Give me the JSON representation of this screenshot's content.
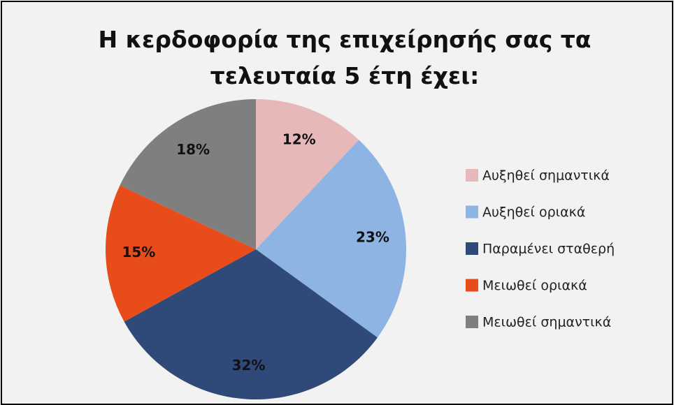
{
  "chart_data": {
    "type": "pie",
    "title": "Η κερδοφορία της επιχείρησής σας τα τελευταία 5 έτη έχει:",
    "categories": [
      "Αυξηθεί σημαντικά",
      "Αυξηθεί οριακά",
      "Παραμένει σταθερή",
      "Μειωθεί οριακά",
      "Μειωθεί σημαντικά"
    ],
    "values": [
      12,
      23,
      32,
      15,
      18
    ],
    "value_labels": [
      "12%",
      "23%",
      "32%",
      "15%",
      "18%"
    ],
    "colors": [
      "#e6b9b8",
      "#8eb4e3",
      "#2f4a78",
      "#e84c1a",
      "#7f7f7f"
    ],
    "legend": "right"
  }
}
